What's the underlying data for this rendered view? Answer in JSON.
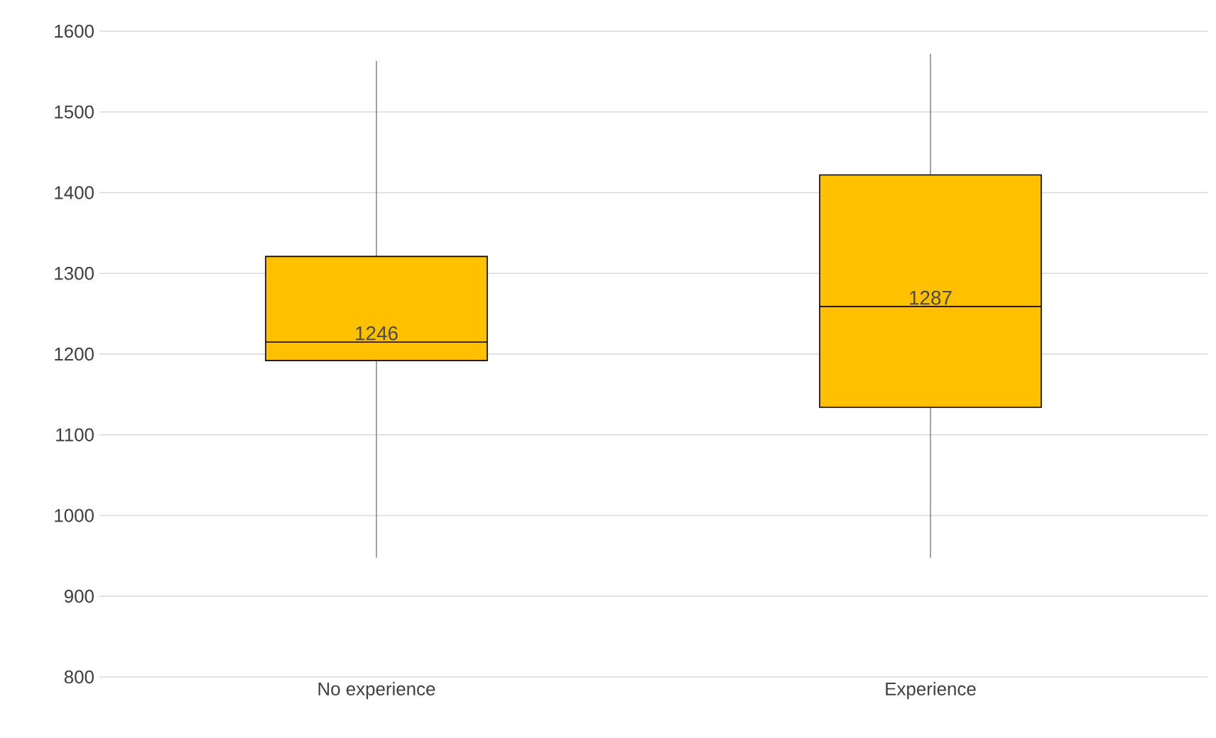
{
  "chart_data": {
    "type": "box",
    "categories": [
      "No experience",
      "Experience"
    ],
    "boxes": [
      {
        "low": 948,
        "q1": 1192,
        "median": 1215,
        "q3": 1321,
        "high": 1563
      },
      {
        "low": 948,
        "q1": 1134,
        "median": 1259,
        "q3": 1422,
        "high": 1572
      }
    ],
    "value_labels": [
      "1246",
      "1287"
    ],
    "color": "#ffc000",
    "grid": "y",
    "ylim": [
      800,
      1600
    ],
    "yticks": [
      800,
      900,
      1000,
      1100,
      1200,
      1300,
      1400,
      1500,
      1600
    ]
  }
}
